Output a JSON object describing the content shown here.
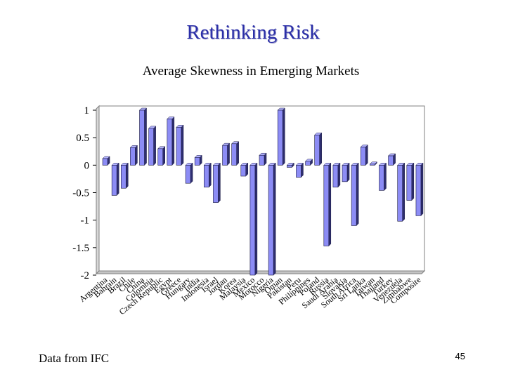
{
  "slide": {
    "title": "Rethinking Risk",
    "footer_note": "Data from IFC",
    "page_number": "45"
  },
  "colors": {
    "bar_front": "#8c8cf5",
    "bar_side": "#2e2e70",
    "bar_outline": "#1a1a40",
    "grid": "#c0c0c0",
    "title": "#2b2fa8"
  },
  "chart_data": {
    "type": "bar",
    "title": "Average Skewness in Emerging Markets",
    "xlabel": "",
    "ylabel": "",
    "ylim": [
      -2,
      1
    ],
    "yticks": [
      1,
      0.5,
      0,
      -0.5,
      -1,
      -1.5,
      -2
    ],
    "ytick_labels": [
      "1",
      "0.5",
      "0",
      "-0.5",
      "-1",
      "-1.5",
      "-2"
    ],
    "grid": false,
    "legend": "none",
    "categories": [
      "Argentina",
      "Bahrain",
      "Brazil",
      "Chile",
      "China",
      "Colombia",
      "Czech Republic",
      "Egypt",
      "Greece",
      "Hungary",
      "India",
      "Indonesia",
      "Israel",
      "Jordan",
      "Korea",
      "Malaysia",
      "Mexico",
      "Morocco",
      "Nigeria",
      "Oman",
      "Pakistan",
      "Peru",
      "Philippines",
      "Poland",
      "Russia",
      "Saudi Arabia",
      "Slovakia",
      "South Africa",
      "Sri Lanka",
      "Taiwan",
      "Thailand",
      "Turkey",
      "Venezuela",
      "Zimbabwe",
      "Composite"
    ],
    "values": [
      0.12,
      -0.55,
      -0.42,
      0.32,
      1.0,
      0.67,
      0.3,
      0.84,
      0.69,
      -0.33,
      0.14,
      -0.4,
      -0.68,
      0.36,
      0.39,
      -0.2,
      -2.0,
      0.18,
      -2.0,
      1.0,
      -0.04,
      -0.22,
      0.07,
      0.55,
      -1.47,
      -0.4,
      -0.3,
      -1.1,
      0.33,
      0.02,
      -0.46,
      0.17,
      -1.02,
      -0.64,
      -0.92
    ]
  }
}
